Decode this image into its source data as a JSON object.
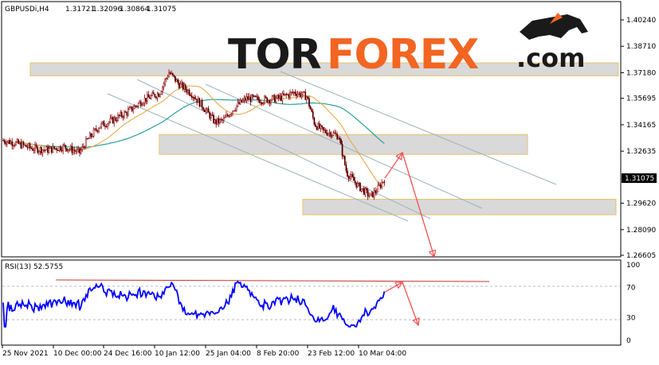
{
  "chart_header": {
    "symbol": "GBPUSDi,H4",
    "open": "1.31721",
    "high": "1.32096",
    "low": "1.30864",
    "close": "1.31075"
  },
  "logo": {
    "part1": "TOR",
    "part2": "FOREX",
    "part3": ".com"
  },
  "current_price_label": "1.31075",
  "rsi_label": "RSI(13) 52.5755",
  "colors": {
    "candle": "#8b0000",
    "ma_fast": "#e8a33a",
    "ma_slow": "#2aa198",
    "rsi_line": "#0000ff",
    "arrow": "#f05050",
    "zone_fill": "#d9d9d9",
    "zone_border": "#e6c36a",
    "trendline": "#9db3c0",
    "logo_dark": "#1a1a1a",
    "logo_orange": "#f26522"
  },
  "chart_data": [
    {
      "type": "candlestick",
      "title": "GBPUSDi,H4",
      "y_ticks": [
        "1.40240",
        "1.38710",
        "1.37180",
        "1.35695",
        "1.34165",
        "1.32635",
        "1.29620",
        "1.28090",
        "1.26605"
      ],
      "ylim": [
        1.26,
        1.41
      ],
      "x_ticks": [
        "25 Nov 2021",
        "10 Dec 00:00",
        "24 Dec 16:00",
        "10 Jan 12:00",
        "25 Jan 04:00",
        "8 Feb 20:00",
        "23 Feb 12:00",
        "10 Mar 04:00"
      ],
      "price_path": [
        [
          0,
          1.333
        ],
        [
          20,
          1.331
        ],
        [
          40,
          1.328
        ],
        [
          60,
          1.327
        ],
        [
          80,
          1.329
        ],
        [
          100,
          1.3255
        ],
        [
          110,
          1.333
        ],
        [
          125,
          1.341
        ],
        [
          140,
          1.344
        ],
        [
          160,
          1.349
        ],
        [
          180,
          1.356
        ],
        [
          200,
          1.36
        ],
        [
          212,
          1.372
        ],
        [
          225,
          1.365
        ],
        [
          240,
          1.36
        ],
        [
          255,
          1.352
        ],
        [
          270,
          1.343
        ],
        [
          280,
          1.344
        ],
        [
          295,
          1.352
        ],
        [
          310,
          1.357
        ],
        [
          330,
          1.356
        ],
        [
          350,
          1.357
        ],
        [
          370,
          1.3605
        ],
        [
          385,
          1.358
        ],
        [
          395,
          1.342
        ],
        [
          405,
          1.338
        ],
        [
          415,
          1.337
        ],
        [
          425,
          1.335
        ],
        [
          435,
          1.314
        ],
        [
          450,
          1.306
        ],
        [
          465,
          1.3
        ],
        [
          475,
          1.305
        ],
        [
          483,
          1.3107
        ]
      ],
      "zones": [
        {
          "top": 1.3775,
          "bottom": 1.37
        },
        {
          "top": 1.336,
          "bottom": 1.3245
        },
        {
          "top": 1.2985,
          "bottom": 1.2895
        }
      ],
      "forecast": [
        [
          483,
          1.3107
        ],
        [
          505,
          1.3255
        ],
        [
          545,
          1.265
        ]
      ]
    },
    {
      "type": "line",
      "title": "RSI(13) 52.5755",
      "y_ticks": [
        "100",
        "70",
        "30",
        "0"
      ],
      "ylim": [
        0,
        100
      ],
      "level_line": 77,
      "forecast": [
        [
          483,
          64
        ],
        [
          505,
          77
        ],
        [
          525,
          20
        ]
      ]
    }
  ]
}
